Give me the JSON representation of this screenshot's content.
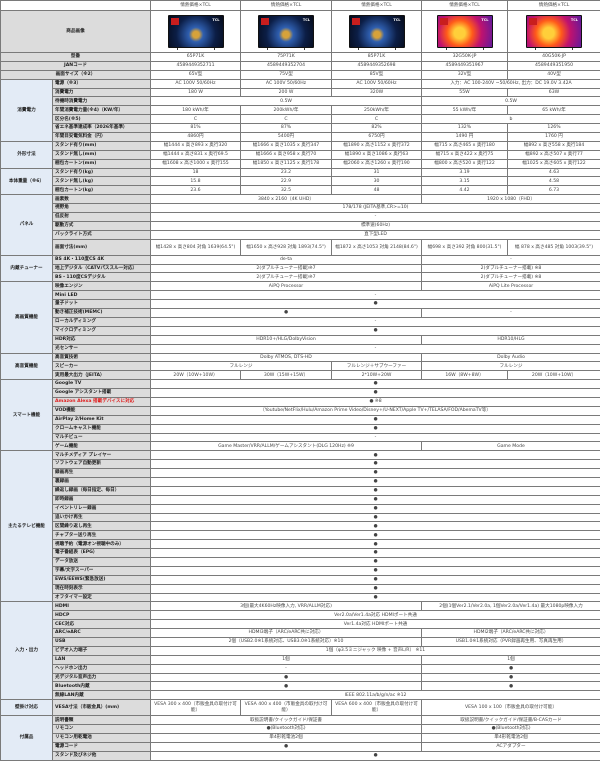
{
  "brand": "情熱価格×TCL",
  "image_label": "商品画像",
  "tv_logo": "TCL",
  "tv_styles": [
    "blue",
    "blue",
    "blue",
    "warm",
    "warm"
  ],
  "accent_red": "#e02020",
  "sections": [
    {
      "category": "",
      "merged": true,
      "rows": [
        {
          "label": "型番",
          "cells": [
            "65P71K",
            "75P71K",
            "85P71K",
            "32G50K-JP",
            "40G50K-JP"
          ]
        },
        {
          "label": "JANコード",
          "cells": [
            "4589449352711",
            "4589449352704",
            "4589449352698",
            "4589449351967",
            "4589449351950"
          ]
        },
        {
          "label": "画面サイズ（※2）",
          "cells": [
            "65V型",
            "75V型",
            "85V型",
            "32V型",
            "40V型"
          ]
        }
      ]
    },
    {
      "category": "消費電力",
      "rows": [
        {
          "label": "電源（※3）",
          "cells": [
            "AC 100V 50/60Hz",
            "AC 100V 50/60Hz",
            "AC 100V 50/60Hz",
            {
              "v": "入力：AC 100-240V ~50/60Hz, 出力：DC 19.0V 3.42A",
              "s": 2
            }
          ]
        },
        {
          "label": "消費電力",
          "cells": [
            "180 W",
            "200 W",
            "320W",
            "55W",
            "63W"
          ]
        },
        {
          "label": "待機時消費電力",
          "cells": [
            {
              "v": "0.5W",
              "s": 3
            },
            {
              "v": "0.5W",
              "s": 2
            }
          ]
        },
        {
          "label": "年間消費電力量(※4)（KW/年）",
          "cells": [
            "180 kWh/年",
            "200kWh/年",
            "250kWh/年",
            "55 kWh/年",
            "65 kWh/年"
          ]
        },
        {
          "label": "区分名(※5)",
          "cells": [
            "C",
            "C",
            "C",
            {
              "v": "b",
              "s": 2
            }
          ]
        },
        {
          "label": "省エネ基準達成率（2026年基準）",
          "cells": [
            "81%",
            "87%",
            "82%",
            "132%",
            "126%"
          ]
        },
        {
          "label": "年間目安電気料金（円）",
          "cells": [
            "4860円",
            "5400円",
            "6750円",
            "1490 円",
            "1760 円"
          ]
        }
      ]
    },
    {
      "category": "外形寸法",
      "rows": [
        {
          "label": "スタンド有り(mm)",
          "cells": [
            "幅1444 x 高さ893 x 奥行320",
            "幅1666 x 高さ1035 x 奥行347",
            "幅1890 x 高さ1152 x 奥行372",
            "幅715 x 高さ465 x 奥行180",
            "幅892 x 高さ558 x 奥行184"
          ]
        },
        {
          "label": "スタンド無し(mm)",
          "cells": [
            "幅1444 x 高さ831 x 奥行69.5",
            "幅1666 x 高さ958 x 奥行70",
            "幅1890 x 高さ1086 x 奥行63",
            "幅715 x 高さ422 x 奥行75",
            "幅892 x 高さ507 x 奥行77"
          ]
        },
        {
          "label": "梱包カートン(mm)",
          "cells": [
            "幅1608 x 高さ1000 x 奥行155",
            "幅1850 x 高さ1125 x 奥行178",
            "幅2060 x 高さ1260 x 奥行190",
            "幅800 x 高さ520 x 奥行122",
            "幅1025 x 高さ605 x 奥行122"
          ]
        }
      ]
    },
    {
      "category": "本体重量（※6）",
      "rows": [
        {
          "label": "スタンド有り(kg)",
          "cells": [
            "18",
            "23.2",
            "31",
            "3.19",
            "4.63"
          ]
        },
        {
          "label": "スタンド無し(kg)",
          "cells": [
            "15.8",
            "22.9",
            "30",
            "3.15",
            "4.58"
          ]
        },
        {
          "label": "梱包カートン(kg)",
          "cells": [
            "23.6",
            "32.5",
            "48",
            "4.42",
            "6.73"
          ]
        }
      ]
    },
    {
      "category": "パネル",
      "rows": [
        {
          "label": "画素数",
          "cells": [
            {
              "v": "3840 x 2160（4K UHD）",
              "s": 3
            },
            {
              "v": "1920 x 1080（FHD）",
              "s": 2
            }
          ]
        },
        {
          "label": "視野角",
          "cells": [
            {
              "v": "178/178 (JEITA基準,CR>=10)",
              "s": 5
            }
          ]
        },
        {
          "label": "低反射",
          "cells": [
            {
              "v": "-",
              "s": 5
            }
          ]
        },
        {
          "label": "駆動方式",
          "cells": [
            {
              "v": "標準速(60Hz)",
              "s": 5
            }
          ]
        },
        {
          "label": "バックライト方式",
          "cells": [
            {
              "v": "直下型LED",
              "s": 5
            }
          ]
        },
        {
          "label": "画面寸法(mm)",
          "tall": true,
          "cells": [
            "幅1428 x 高さ804 対角 1639(64.5\")",
            "幅1650 x 高さ928 対角 1893(74.5\")",
            "幅1872 x 高さ1053 対角 2148(84.6\")",
            "幅698 x 高さ392 対角 800(31.5\")",
            "幅 878 x 高さ485 対角 1003(39.5\")"
          ]
        }
      ]
    },
    {
      "category": "内蔵チューナー",
      "rows": [
        {
          "label": "BS 4K・110度CS 4K",
          "cells": [
            {
              "v": "de-ta",
              "s": 3
            },
            {
              "v": "-",
              "s": 2
            }
          ]
        },
        {
          "label": "地上デジタル（CATVパススルー対応）",
          "cells": [
            {
              "v": "2(ダブルチューナー搭載)※7",
              "s": 3
            },
            {
              "v": "2(ダブルチューナー搭載) ※8",
              "s": 2
            }
          ]
        },
        {
          "label": "BS・110度CSデジタル",
          "cells": [
            {
              "v": "2(ダブルチューナー搭載)※7",
              "s": 3
            },
            {
              "v": "2(ダブルチューナー搭載) ※8",
              "s": 2
            }
          ]
        }
      ]
    },
    {
      "category": "高画質機能",
      "rows": [
        {
          "label": "映像エンジン",
          "cells": [
            {
              "v": "AiPQ Processor",
              "s": 3
            },
            {
              "v": "AiPQ Lite Processor",
              "s": 2
            }
          ]
        },
        {
          "label": "Mini LED",
          "cells": [
            {
              "v": "-",
              "s": 5
            }
          ]
        },
        {
          "label": "量子ドット",
          "cells": [
            {
              "v": "●",
              "s": 5
            }
          ]
        },
        {
          "label": "動き補正技術(MEMC)",
          "cells": [
            {
              "v": "●",
              "s": 3
            },
            {
              "v": "-",
              "s": 2
            }
          ]
        },
        {
          "label": "ローカルディミング",
          "cells": [
            {
              "v": "-",
              "s": 5
            }
          ]
        },
        {
          "label": "マイクロディミング",
          "cells": [
            {
              "v": "●",
              "s": 5
            }
          ]
        },
        {
          "label": "HDR対応",
          "cells": [
            {
              "v": "HDR10+/HLG/DolbyVision",
              "s": 3
            },
            {
              "v": "HDR10/HLG",
              "s": 2
            }
          ]
        },
        {
          "label": "光センサー",
          "cells": [
            {
              "v": "-",
              "s": 5
            }
          ]
        }
      ]
    },
    {
      "category": "高音質機能",
      "rows": [
        {
          "label": "高音質技術",
          "cells": [
            {
              "v": "Dolby ATMOS, DTS-HD",
              "s": 3
            },
            {
              "v": "Dolby Audio",
              "s": 2
            }
          ]
        },
        {
          "label": "スピーカー",
          "cells": [
            {
              "v": "フルレンジ",
              "s": 2
            },
            "フルレンジ＋サブウーファー",
            {
              "v": "フルレンジ",
              "s": 2
            }
          ]
        },
        {
          "label": "実用最大出力（JEITA）",
          "cells": [
            "20W（10W+10W）",
            "30W（15W+15W）",
            "2*10W+20W",
            "16W（8W+8W）",
            "20W（10W+10W）"
          ]
        }
      ]
    },
    {
      "category": "スマート機能",
      "rows": [
        {
          "label": "Google TV",
          "cells": [
            {
              "v": "●",
              "s": 5
            }
          ]
        },
        {
          "label": "Google アシスタント搭載",
          "cells": [
            {
              "v": "●",
              "s": 5
            }
          ]
        },
        {
          "label": "Amazon Alexa 搭載デバイスに対応",
          "red": true,
          "cells": [
            {
              "v": "● ※8",
              "s": 5
            }
          ]
        },
        {
          "label": "VOD機能",
          "cells": [
            {
              "v": "（Youtube/NetFlix/Hulu/Amazon Prime Video/Disney+/U-NEXT/Apple TV+/TELASA/FOD/AbemaTV等）",
              "s": 5
            }
          ]
        },
        {
          "label": "AirPlay 2/Home Kit",
          "cells": [
            {
              "v": "●",
              "s": 5
            }
          ]
        },
        {
          "label": "クロームキャスト機能",
          "cells": [
            {
              "v": "●",
              "s": 5
            }
          ]
        },
        {
          "label": "マルチビュー",
          "cells": [
            {
              "v": "-",
              "s": 5
            }
          ]
        },
        {
          "label": "ゲーム機能",
          "cells": [
            {
              "v": "Game Master/VRR/ALLM/ゲームアシスタント(DLG 120Hz) ※9",
              "s": 3
            },
            {
              "v": "Game Mode",
              "s": 2
            }
          ]
        }
      ]
    },
    {
      "category": "主たるテレビ機能",
      "rows": [
        {
          "label": "マルチメディア プレイヤー",
          "cells": [
            {
              "v": "●",
              "s": 5
            }
          ]
        },
        {
          "label": "ソフトウェア自動更新",
          "cells": [
            {
              "v": "●",
              "s": 5
            }
          ]
        },
        {
          "label": "録画再生",
          "cells": [
            {
              "v": "●",
              "s": 5
            }
          ]
        },
        {
          "label": "裏録画",
          "cells": [
            {
              "v": "●",
              "s": 5
            }
          ]
        },
        {
          "label": "繰返し録画（毎日指定、毎日）",
          "cells": [
            {
              "v": "●",
              "s": 5
            }
          ]
        },
        {
          "label": "即時録画",
          "cells": [
            {
              "v": "●",
              "s": 5
            }
          ]
        },
        {
          "label": "イベントリレー録画",
          "cells": [
            {
              "v": "●",
              "s": 5
            }
          ]
        },
        {
          "label": "追いかけ再生",
          "cells": [
            {
              "v": "●",
              "s": 5
            }
          ]
        },
        {
          "label": "区間繰り返し再生",
          "cells": [
            {
              "v": "●",
              "s": 5
            }
          ]
        },
        {
          "label": "チャプター送り再生",
          "cells": [
            {
              "v": "●",
              "s": 5
            }
          ]
        },
        {
          "label": "視聴予約（電源オン視聴中のみ）",
          "cells": [
            {
              "v": "●",
              "s": 5
            }
          ]
        },
        {
          "label": "電子番組表（EPG）",
          "cells": [
            {
              "v": "●",
              "s": 5
            }
          ]
        },
        {
          "label": "データ放送",
          "cells": [
            {
              "v": "●",
              "s": 5
            }
          ]
        },
        {
          "label": "字幕/文字スーパー",
          "cells": [
            {
              "v": "●",
              "s": 5
            }
          ]
        },
        {
          "label": "EWS/EEWS(緊急放送)",
          "cells": [
            {
              "v": "●",
              "s": 5
            }
          ]
        },
        {
          "label": "現在時刻表示",
          "cells": [
            {
              "v": "●",
              "s": 5
            }
          ]
        },
        {
          "label": "オフタイマー設定",
          "cells": [
            {
              "v": "●",
              "s": 5
            }
          ]
        }
      ]
    },
    {
      "category": "入力・出力",
      "rows": [
        {
          "label": "HDMI",
          "cells": [
            {
              "v": "3個(最大4K60Hz映像入力, VRR/ALLM対応)",
              "s": 3
            },
            {
              "v": "2個(1個Ver2.1/Ver2.0a, 1個Ver2.0a/Ver1.4a) 最大1080p映像入力",
              "s": 2
            }
          ]
        },
        {
          "label": "HDCP",
          "cells": [
            {
              "v": "Ver2.0a/Ver1.4a対応 HDMIポート共通",
              "s": 5
            }
          ]
        },
        {
          "label": "CEC対応",
          "cells": [
            {
              "v": "Ver1.4a対応 HDMIポート共通",
              "s": 5
            }
          ]
        },
        {
          "label": "ARC/eARC",
          "cells": [
            {
              "v": "HDMI3端子（ARC/eARC共に対応）",
              "s": 3
            },
            {
              "v": "HDMI2端子（ARC/eARC共に対応）",
              "s": 2
            }
          ]
        },
        {
          "label": "USB",
          "cells": [
            {
              "v": "2個（USB2.0※1系統対応、USB3.0※1系統対応）※10",
              "s": 3
            },
            {
              "v": "USB1.0※1系統対応（PVR録画再生用、写真再生用）",
              "s": 2
            }
          ]
        },
        {
          "label": "ビデオ入力端子",
          "cells": [
            {
              "v": "1個（φ3.5ミニジャック 映像 + 音声L/R） ※11",
              "s": 5
            }
          ]
        },
        {
          "label": "LAN",
          "cells": [
            {
              "v": "1個",
              "s": 3
            },
            {
              "v": "1個",
              "s": 2
            }
          ]
        },
        {
          "label": "ヘッドホン出力",
          "cells": [
            {
              "v": "-",
              "s": 3
            },
            {
              "v": "●",
              "s": 2
            }
          ]
        },
        {
          "label": "光デジタル音声出力",
          "cells": [
            {
              "v": "●",
              "s": 3
            },
            {
              "v": "●",
              "s": 2
            }
          ]
        },
        {
          "label": "Bluetooth内蔵",
          "cells": [
            {
              "v": "●",
              "s": 3
            },
            {
              "v": "●",
              "s": 2
            }
          ]
        },
        {
          "label": "無線LAN内蔵",
          "cells": [
            {
              "v": "IEEE 802.11a/b/g/n/ac ※12",
              "s": 5
            }
          ]
        }
      ]
    },
    {
      "category": "壁掛け対応",
      "rows": [
        {
          "label": "VESA寸法（市販金具）(mm)",
          "tall": true,
          "cells": [
            "VESA 300 x 400（市販金具の取付け可能）",
            "VESA 400 x 400（市販金具の取付け可能）",
            "VESA 600 x 400（市販金具の取付け可能）",
            {
              "v": "VESA 100 x 100（市販金具の取付け可能）",
              "s": 2
            }
          ]
        }
      ]
    },
    {
      "category": "付属品",
      "rows": [
        {
          "label": "説明書類",
          "cells": [
            {
              "v": "取扱説明書/クイックガイド/保証書",
              "s": 3
            },
            {
              "v": "取扱説明書/クイックガイド/保証書/B-CASカード",
              "s": 2
            }
          ]
        },
        {
          "label": "リモコン",
          "cells": [
            {
              "v": "●(Bluetooth対応)",
              "s": 3
            },
            {
              "v": "●(Bluetooth対応)",
              "s": 2
            }
          ]
        },
        {
          "label": "リモコン用乾電池",
          "cells": [
            {
              "v": "単4形乾電池2個",
              "s": 3
            },
            {
              "v": "単4形乾電池2個",
              "s": 2
            }
          ]
        },
        {
          "label": "電源コード",
          "cells": [
            {
              "v": "●",
              "s": 3
            },
            {
              "v": "ACアダプター",
              "s": 2
            }
          ]
        },
        {
          "label": "スタンド及びネジ他",
          "cells": [
            {
              "v": "●",
              "s": 5
            }
          ]
        }
      ]
    }
  ]
}
